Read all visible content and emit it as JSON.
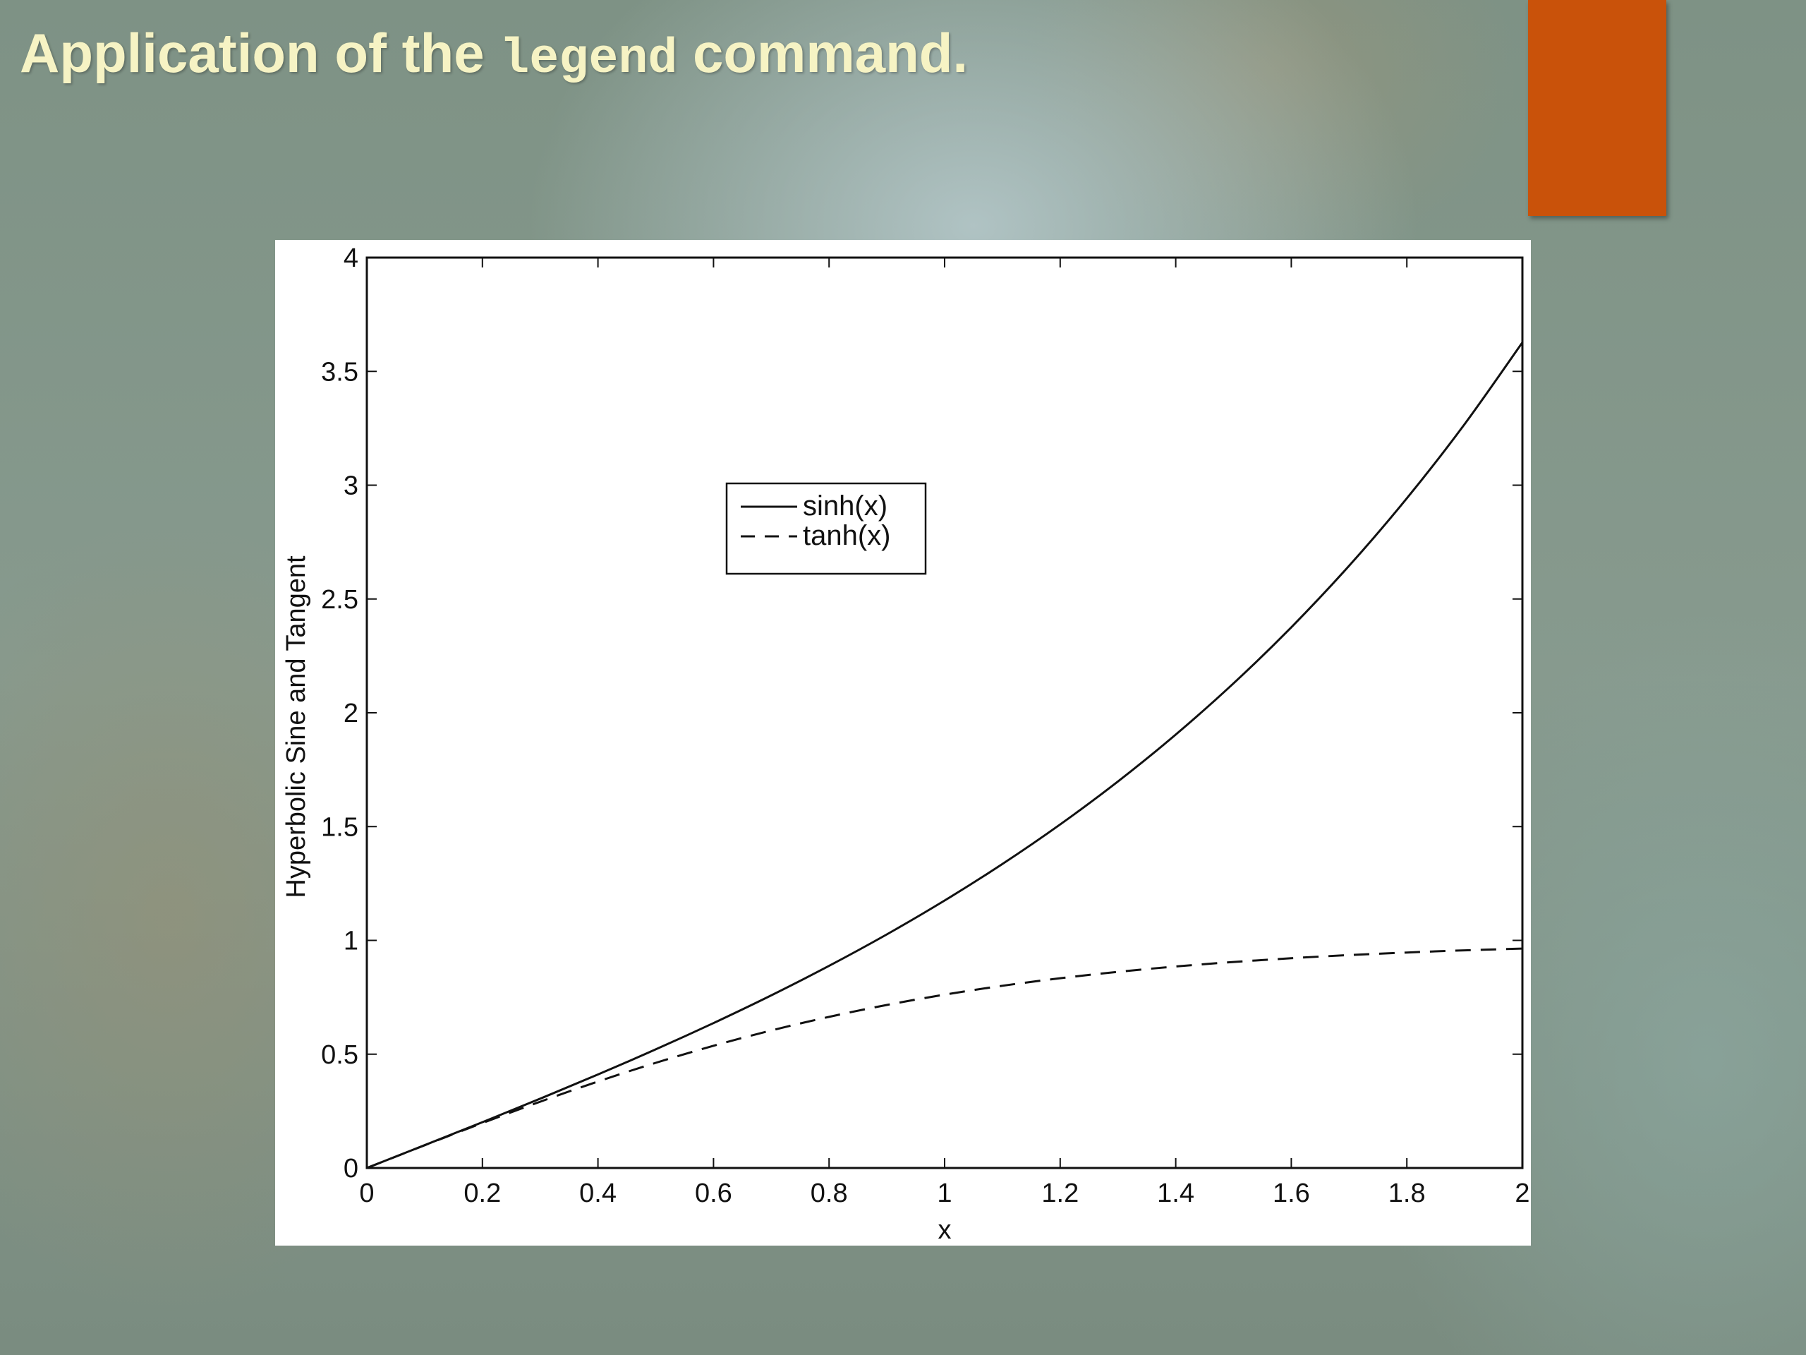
{
  "slide": {
    "title_prefix": "Application of the ",
    "title_code": "legend",
    "title_suffix": " command."
  },
  "colors": {
    "title_text": "#f6f3c4",
    "accent_block": "#c9520a",
    "figure_background": "#ffffff",
    "line_color": "#111111"
  },
  "chart_data": {
    "type": "line",
    "title": "",
    "xlabel": "x",
    "ylabel": "Hyperbolic Sine and Tangent",
    "xlim": [
      0,
      2
    ],
    "ylim": [
      0,
      4
    ],
    "xticks": [
      0,
      0.2,
      0.4,
      0.6,
      0.8,
      1,
      1.2,
      1.4,
      1.6,
      1.8,
      2
    ],
    "xtick_labels": [
      "0",
      "0.2",
      "0.4",
      "0.6",
      "0.8",
      "1",
      "1.2",
      "1.4",
      "1.6",
      "1.8",
      "2"
    ],
    "yticks": [
      0,
      0.5,
      1,
      1.5,
      2,
      2.5,
      3,
      3.5,
      4
    ],
    "ytick_labels": [
      "0",
      "0.5",
      "1",
      "1.5",
      "2",
      "2.5",
      "3",
      "3.5",
      "4"
    ],
    "grid": false,
    "legend_position": "upper-center-left",
    "x": [
      0,
      0.1,
      0.2,
      0.3,
      0.4,
      0.5,
      0.6,
      0.7,
      0.8,
      0.9,
      1.0,
      1.1,
      1.2,
      1.3,
      1.4,
      1.5,
      1.6,
      1.7,
      1.8,
      1.9,
      2.0
    ],
    "series": [
      {
        "name": "sinh(x)",
        "line_style": "solid",
        "values": [
          0,
          0.1002,
          0.2013,
          0.3045,
          0.4108,
          0.5211,
          0.6367,
          0.7586,
          0.8881,
          1.0265,
          1.1752,
          1.3356,
          1.5095,
          1.6984,
          1.9043,
          2.1293,
          2.3756,
          2.6456,
          2.9422,
          3.2682,
          3.6269
        ]
      },
      {
        "name": "tanh(x)",
        "line_style": "dashed",
        "values": [
          0,
          0.0997,
          0.1974,
          0.2913,
          0.3799,
          0.4621,
          0.537,
          0.6044,
          0.664,
          0.7163,
          0.7616,
          0.8005,
          0.8337,
          0.8617,
          0.8854,
          0.9051,
          0.9217,
          0.9354,
          0.9468,
          0.9562,
          0.964
        ]
      }
    ]
  }
}
